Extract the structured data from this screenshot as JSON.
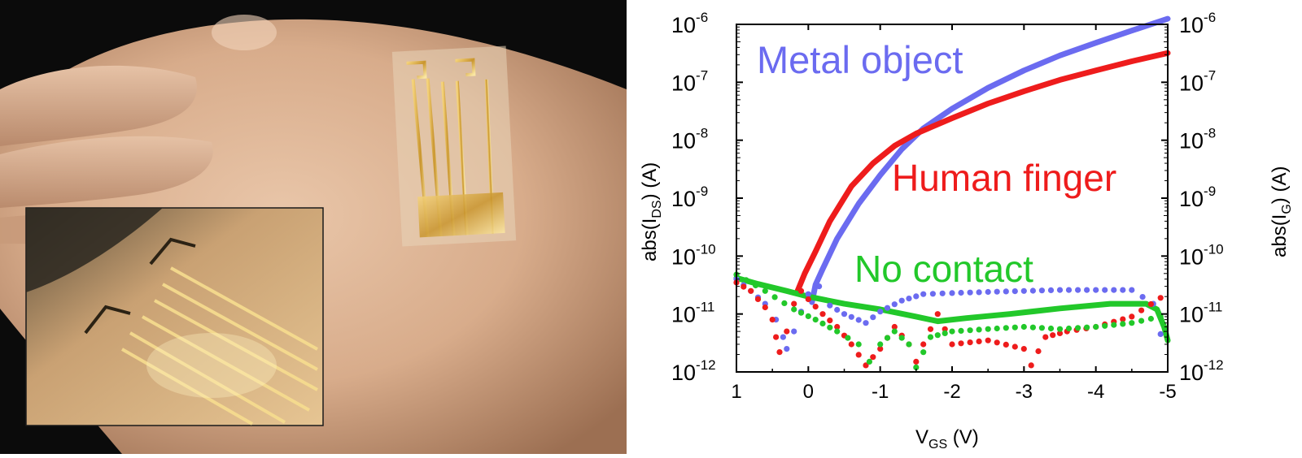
{
  "colors": {
    "metal": "#6b6bf0",
    "finger": "#ee1c1c",
    "nocontact": "#22c82a",
    "axis": "#000000"
  },
  "photo": {
    "description_icons": [
      "hand-photo",
      "sensor-patch",
      "inset-photo"
    ]
  },
  "chart_data": {
    "type": "line",
    "xlabel_main": "V",
    "xlabel_sub": "GS",
    "xlabel_unit": " (V)",
    "ylabel_left_main": "abs(I",
    "ylabel_left_sub": "DS",
    "ylabel_left_unit": ") (A)",
    "ylabel_right_main": "abs(I",
    "ylabel_right_sub": "G",
    "ylabel_right_unit": ") (A)",
    "x_reversed": true,
    "xlim": [
      1,
      -5
    ],
    "ylim_log10": [
      -12,
      -6
    ],
    "y_scale": "log",
    "x_ticks": [
      1,
      0,
      -1,
      -2,
      -3,
      -4,
      -5
    ],
    "x_tick_labels": [
      "1",
      "0",
      "-1",
      "-2",
      "-3",
      "-4",
      "-5"
    ],
    "y_ticks_exp": [
      -6,
      -7,
      -8,
      -9,
      -10,
      -11,
      -12
    ],
    "y_tick_base": "10",
    "y_tick_exponents": [
      "-6",
      "-7",
      "-8",
      "-9",
      "-10",
      "-11",
      "-12"
    ],
    "annotations": {
      "metal": "Metal object",
      "finger": "Human finger",
      "nocontact": "No contact"
    },
    "series": [
      {
        "name": "Metal object",
        "kind": "I_DS",
        "style": "solid",
        "color_key": "metal",
        "points": [
          [
            -0.05,
            1.6e-11
          ],
          [
            -0.1,
            3.2e-11
          ],
          [
            -0.2,
            6e-11
          ],
          [
            -0.4,
            2e-10
          ],
          [
            -0.7,
            8e-10
          ],
          [
            -1.0,
            2.5e-09
          ],
          [
            -1.3,
            7e-09
          ],
          [
            -1.6,
            1.6e-08
          ],
          [
            -2.0,
            3.5e-08
          ],
          [
            -2.5,
            8e-08
          ],
          [
            -3.0,
            1.6e-07
          ],
          [
            -3.5,
            2.9e-07
          ],
          [
            -4.0,
            4.8e-07
          ],
          [
            -4.5,
            7.8e-07
          ],
          [
            -5.0,
            1.25e-06
          ]
        ]
      },
      {
        "name": "Human finger",
        "kind": "I_DS",
        "style": "solid",
        "color_key": "finger",
        "points": [
          [
            0.15,
            2.5e-11
          ],
          [
            0.05,
            5e-11
          ],
          [
            -0.1,
            1.2e-10
          ],
          [
            -0.3,
            4e-10
          ],
          [
            -0.6,
            1.6e-09
          ],
          [
            -0.9,
            4e-09
          ],
          [
            -1.2,
            8e-09
          ],
          [
            -1.5,
            1.3e-08
          ],
          [
            -2.0,
            2.4e-08
          ],
          [
            -2.5,
            4.3e-08
          ],
          [
            -3.0,
            7e-08
          ],
          [
            -3.5,
            1.1e-07
          ],
          [
            -4.0,
            1.6e-07
          ],
          [
            -4.5,
            2.3e-07
          ],
          [
            -5.0,
            3.2e-07
          ]
        ]
      },
      {
        "name": "No contact",
        "kind": "I_DS",
        "style": "solid",
        "color_key": "nocontact",
        "points": [
          [
            1.0,
            4.2e-11
          ],
          [
            0.7,
            3.3e-11
          ],
          [
            0.3,
            2.5e-11
          ],
          [
            0.0,
            2e-11
          ],
          [
            -0.5,
            1.5e-11
          ],
          [
            -1.0,
            1.2e-11
          ],
          [
            -1.5,
            9e-12
          ],
          [
            -1.8,
            7.5e-12
          ],
          [
            -2.2,
            8.5e-12
          ],
          [
            -2.8,
            1e-11
          ],
          [
            -3.5,
            1.25e-11
          ],
          [
            -4.2,
            1.5e-11
          ],
          [
            -4.7,
            1.5e-11
          ],
          [
            -4.85,
            1.2e-11
          ],
          [
            -4.95,
            6e-12
          ],
          [
            -5.0,
            3.5e-12
          ]
        ]
      },
      {
        "name": "Metal object",
        "kind": "I_G",
        "style": "dotted",
        "color_key": "metal",
        "points": [
          [
            1.0,
            4e-11
          ],
          [
            0.8,
            2.5e-11
          ],
          [
            0.6,
            1.5e-11
          ],
          [
            0.45,
            8e-12
          ],
          [
            0.35,
            4e-12
          ],
          [
            0.3,
            2.5e-12
          ],
          [
            0.2,
            5e-12
          ],
          [
            0.1,
            1.1e-11
          ],
          [
            0.0,
            2.2e-11
          ],
          [
            -0.15,
            3e-11
          ],
          [
            -0.3,
            1.4e-11
          ],
          [
            -0.5,
            1e-11
          ],
          [
            -0.8,
            7e-12
          ],
          [
            -1.0,
            1.1e-11
          ],
          [
            -1.3,
            1.7e-11
          ],
          [
            -1.6,
            2.2e-11
          ],
          [
            -2.0,
            2.3e-11
          ],
          [
            -2.5,
            2.4e-11
          ],
          [
            -3.0,
            2.5e-11
          ],
          [
            -3.5,
            2.6e-11
          ],
          [
            -4.0,
            2.6e-11
          ],
          [
            -4.5,
            2.6e-11
          ],
          [
            -4.8,
            1.5e-11
          ],
          [
            -4.9,
            4.5e-12
          ]
        ]
      },
      {
        "name": "Human finger",
        "kind": "I_G",
        "style": "dotted",
        "color_key": "finger",
        "points": [
          [
            1.0,
            3.5e-11
          ],
          [
            0.8,
            2.5e-11
          ],
          [
            0.6,
            1.3e-11
          ],
          [
            0.5,
            8e-12
          ],
          [
            0.45,
            4e-12
          ],
          [
            0.4,
            2.2e-12
          ],
          [
            0.3,
            5e-12
          ],
          [
            0.2,
            1.5e-11
          ],
          [
            0.1,
            2.5e-11
          ],
          [
            0.0,
            1.8e-11
          ],
          [
            -0.2,
            1e-11
          ],
          [
            -0.4,
            6e-12
          ],
          [
            -0.6,
            3e-12
          ],
          [
            -0.8,
            1.3e-12
          ],
          [
            -1.0,
            2.5e-12
          ],
          [
            -1.2,
            6e-12
          ],
          [
            -1.4,
            3e-12
          ],
          [
            -1.5,
            1.5e-12
          ],
          [
            -1.6,
            3e-12
          ],
          [
            -1.8,
            1e-11
          ],
          [
            -2.0,
            3e-12
          ],
          [
            -2.5,
            3.5e-12
          ],
          [
            -3.0,
            2.5e-12
          ],
          [
            -3.1,
            1.3e-12
          ],
          [
            -3.3,
            4e-12
          ],
          [
            -3.6,
            5e-12
          ],
          [
            -4.0,
            6e-12
          ],
          [
            -4.5,
            9e-12
          ],
          [
            -4.9,
            1.9e-11
          ]
        ]
      },
      {
        "name": "No contact",
        "kind": "I_G",
        "style": "dotted",
        "color_key": "nocontact",
        "points": [
          [
            1.0,
            4.8e-11
          ],
          [
            0.6,
            2.5e-11
          ],
          [
            0.2,
            1.2e-11
          ],
          [
            -0.1,
            8e-12
          ],
          [
            -0.4,
            5e-12
          ],
          [
            -0.7,
            3e-12
          ],
          [
            -0.85,
            1.5e-12
          ],
          [
            -1.0,
            3e-12
          ],
          [
            -1.2,
            5e-12
          ],
          [
            -1.4,
            3e-12
          ],
          [
            -1.5,
            1.2e-12
          ],
          [
            -1.7,
            4e-12
          ],
          [
            -2.0,
            5e-12
          ],
          [
            -2.5,
            5.5e-12
          ],
          [
            -3.0,
            6e-12
          ],
          [
            -3.5,
            5.5e-12
          ],
          [
            -4.0,
            6e-12
          ],
          [
            -4.5,
            7e-12
          ],
          [
            -4.9,
            9e-12
          ]
        ]
      }
    ]
  }
}
